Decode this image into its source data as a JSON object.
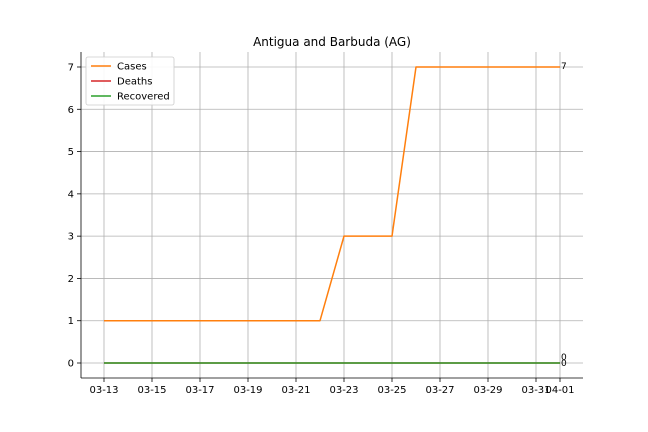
{
  "chart_data": {
    "type": "line",
    "title": "Antigua and Barbuda (AG)",
    "xlabel": "",
    "ylabel": "",
    "x": [
      "03-13",
      "03-14",
      "03-15",
      "03-16",
      "03-17",
      "03-18",
      "03-19",
      "03-20",
      "03-21",
      "03-22",
      "03-23",
      "03-24",
      "03-25",
      "03-26",
      "03-27",
      "03-28",
      "03-29",
      "03-30",
      "03-31",
      "04-01"
    ],
    "x_ticks": [
      "03-13",
      "03-15",
      "03-17",
      "03-19",
      "03-21",
      "03-23",
      "03-25",
      "03-27",
      "03-29",
      "03-31",
      "04-01"
    ],
    "ylim": [
      0,
      7
    ],
    "y_ticks": [
      0,
      1,
      2,
      3,
      4,
      5,
      6,
      7
    ],
    "grid": true,
    "legend_position": "top-left",
    "series": [
      {
        "name": "Cases",
        "color": "#ff7f0e",
        "values": [
          1,
          1,
          1,
          1,
          1,
          1,
          1,
          1,
          1,
          1,
          3,
          3,
          3,
          7,
          7,
          7,
          7,
          7,
          7,
          7
        ],
        "end_label": "7"
      },
      {
        "name": "Deaths",
        "color": "#d62728",
        "values": [
          0,
          0,
          0,
          0,
          0,
          0,
          0,
          0,
          0,
          0,
          0,
          0,
          0,
          0,
          0,
          0,
          0,
          0,
          0,
          0
        ],
        "end_label": "0"
      },
      {
        "name": "Recovered",
        "color": "#2ca02c",
        "values": [
          0,
          0,
          0,
          0,
          0,
          0,
          0,
          0,
          0,
          0,
          0,
          0,
          0,
          0,
          0,
          0,
          0,
          0,
          0,
          0
        ],
        "end_label": "0"
      }
    ]
  }
}
